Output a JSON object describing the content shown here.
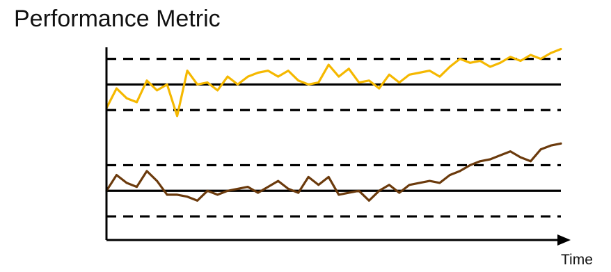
{
  "chart_data": {
    "type": "line",
    "title": "Performance Metric",
    "xlabel": "Time",
    "ylabel": "",
    "ylim": [
      0,
      100
    ],
    "grid": false,
    "legend": "none",
    "colors": {
      "series_top": "#F5B800",
      "series_bottom": "#6B3A0C",
      "reference": "#000000"
    },
    "x": [
      0,
      1,
      2,
      3,
      4,
      5,
      6,
      7,
      8,
      9,
      10,
      11,
      12,
      13,
      14,
      15,
      16,
      17,
      18,
      19,
      20,
      21,
      22,
      23,
      24,
      25,
      26,
      27,
      28,
      29,
      30,
      31,
      32,
      33,
      34,
      35,
      36,
      37,
      38,
      39,
      40,
      41,
      42,
      43,
      44,
      45
    ],
    "reference_lines": [
      {
        "kind": "solid",
        "y": 79
      },
      {
        "kind": "dashed",
        "y": 92
      },
      {
        "kind": "dashed",
        "y": 66
      },
      {
        "kind": "solid",
        "y": 25
      },
      {
        "kind": "dashed",
        "y": 38
      },
      {
        "kind": "dashed",
        "y": 12
      }
    ],
    "series": [
      {
        "values": [
          67,
          77,
          72,
          70,
          81,
          76,
          79,
          63,
          86,
          79,
          80,
          76,
          83,
          79,
          83,
          85,
          86,
          83,
          86,
          81,
          79,
          80,
          89,
          83,
          87,
          80,
          81,
          77,
          84,
          80,
          84,
          85,
          86,
          83,
          88,
          92,
          90,
          91,
          88,
          90,
          93,
          91,
          94,
          92,
          95,
          97
        ]
      },
      {
        "values": [
          25,
          33,
          29,
          27,
          35,
          30,
          23,
          23,
          22,
          20,
          25,
          23,
          25,
          26,
          27,
          24,
          27,
          30,
          26,
          24,
          32,
          28,
          32,
          23,
          24,
          25,
          20,
          25,
          28,
          24,
          28,
          29,
          30,
          29,
          33,
          35,
          38,
          40,
          41,
          43,
          45,
          42,
          40,
          46,
          48,
          49
        ]
      }
    ]
  }
}
